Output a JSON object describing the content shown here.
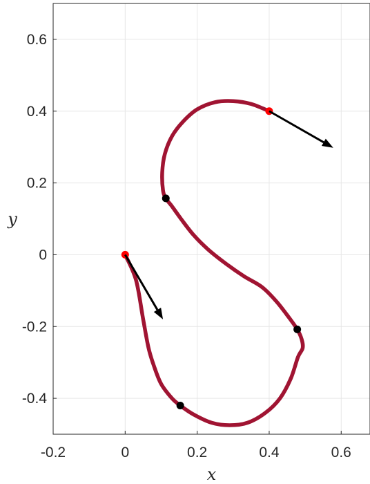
{
  "chart_data": {
    "type": "line",
    "xlabel": "x",
    "ylabel": "y",
    "xlim": [
      -0.2,
      0.68
    ],
    "ylim": [
      -0.5,
      0.7
    ],
    "grid": true,
    "x_ticks": [
      -0.2,
      0,
      0.2,
      0.4,
      0.6
    ],
    "x_tick_labels": [
      "-0.2",
      "0",
      "0.2",
      "0.4",
      "0.6"
    ],
    "y_ticks": [
      -0.4,
      -0.2,
      0,
      0.2,
      0.4,
      0.6
    ],
    "y_tick_labels": [
      "-0.4",
      "-0.2",
      "0",
      "0.2",
      "0.4",
      "0.6"
    ],
    "series": [
      {
        "color": "#a01432",
        "x": [
          0,
          0.03,
          0.05,
          0.065,
          0.08,
          0.1,
          0.13,
          0.153,
          0.19,
          0.24,
          0.29,
          0.34,
          0.39,
          0.43,
          0.46,
          0.48,
          0.493,
          0.49,
          0.478,
          0.455,
          0.42,
          0.38,
          0.33,
          0.28,
          0.23,
          0.19,
          0.155,
          0.13,
          0.113,
          0.105,
          0.103,
          0.11,
          0.13,
          0.16,
          0.2,
          0.25,
          0.3,
          0.35,
          0.4
        ],
        "y": [
          0,
          -0.07,
          -0.18,
          -0.26,
          -0.31,
          -0.36,
          -0.4,
          -0.42,
          -0.445,
          -0.468,
          -0.475,
          -0.468,
          -0.44,
          -0.4,
          -0.345,
          -0.285,
          -0.26,
          -0.235,
          -0.208,
          -0.175,
          -0.13,
          -0.09,
          -0.06,
          -0.025,
          0.015,
          0.055,
          0.1,
          0.135,
          0.157,
          0.18,
          0.23,
          0.28,
          0.33,
          0.37,
          0.405,
          0.425,
          0.428,
          0.42,
          0.4
        ]
      }
    ],
    "markers_red": [
      {
        "x": 0,
        "y": 0
      },
      {
        "x": 0.4,
        "y": 0.4
      }
    ],
    "markers_black": [
      {
        "x": 0.113,
        "y": 0.157
      },
      {
        "x": 0.478,
        "y": -0.208
      },
      {
        "x": 0.153,
        "y": -0.42
      }
    ],
    "arrows": [
      {
        "x0": 0,
        "y0": 0,
        "x1": 0.105,
        "y1": -0.18
      },
      {
        "x0": 0.4,
        "y0": 0.4,
        "x1": 0.578,
        "y1": 0.298
      }
    ]
  }
}
